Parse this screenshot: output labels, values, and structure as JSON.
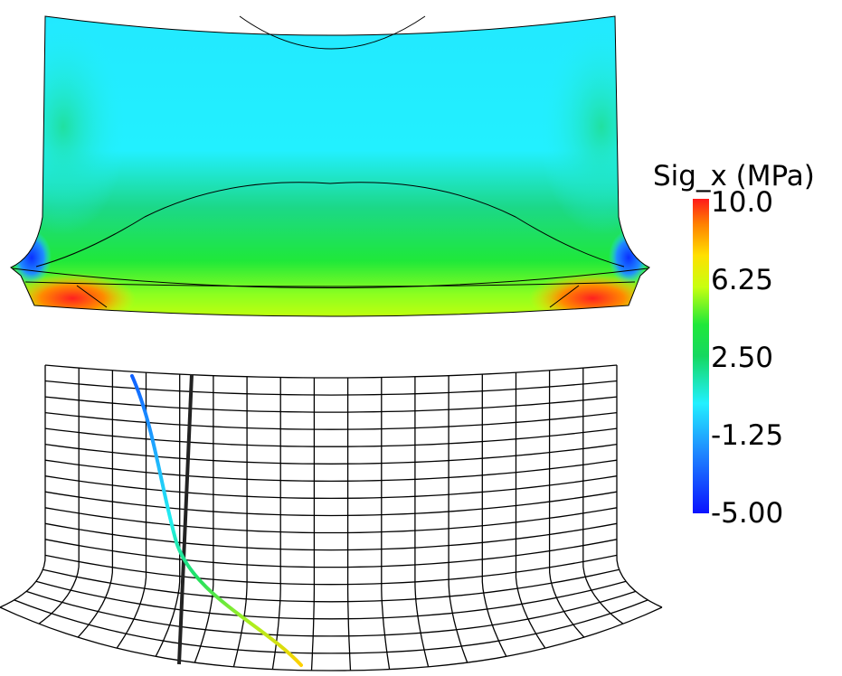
{
  "chart_data": {
    "type": "heatmap",
    "title": "",
    "colorbar": {
      "title": "Sig_x (MPa)",
      "min": -5.0,
      "max": 10.0,
      "tick_labels": [
        "10.0",
        "6.25",
        "2.50",
        "-1.25",
        "-5.00"
      ],
      "tick_values": [
        10.0,
        6.25,
        2.5,
        -1.25,
        -5.0
      ],
      "colormap": [
        "#0a12ff",
        "#1f8cff",
        "#22f0ff",
        "#15d860",
        "#1fe83a",
        "#c8ff10",
        "#ffe000",
        "#ff8000",
        "#ff1a1a"
      ],
      "placement": "right"
    },
    "panels": [
      {
        "name": "stress-contour-panel",
        "description_values": {
          "range": [
            -5.0,
            10.0
          ]
        }
      },
      {
        "name": "deformed-mesh-panel",
        "mesh_columns": 17,
        "mesh_rows": 17
      }
    ],
    "path_line": {
      "values": [
        -4.0,
        -2.5,
        -1.5,
        -0.5,
        1.0,
        3.0,
        5.0,
        7.0
      ]
    }
  }
}
